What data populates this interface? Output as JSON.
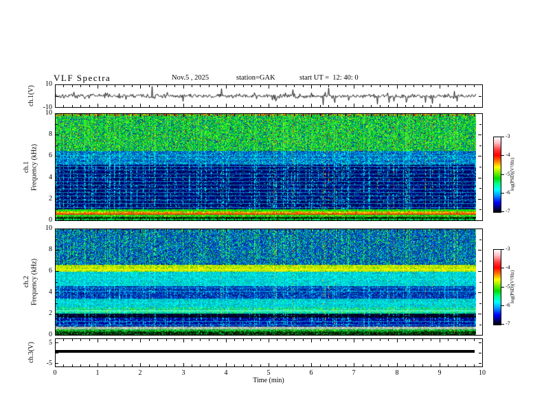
{
  "header": {
    "title": "VLF Spectra",
    "date": "Nov.5 , 2025",
    "station": "station=GAK",
    "start_ut": "start UT =  12: 40: 0"
  },
  "axes": {
    "x": {
      "label": "Time  (min)",
      "tick_labels": [
        "0",
        "1",
        "2",
        "3",
        "4",
        "5",
        "6",
        "7",
        "8",
        "9",
        "10"
      ],
      "range": [
        0,
        10
      ],
      "minor_divisions": 5
    },
    "ch1_wave": {
      "ylabel": "ch.1(V)",
      "tick_labels": [
        "10",
        "-10"
      ],
      "range": [
        -10,
        10
      ]
    },
    "spec": {
      "tick_labels": [
        "0",
        "2",
        "4",
        "6",
        "8",
        "10"
      ],
      "range": [
        0,
        10
      ],
      "minor_step_khz": 1
    },
    "ch3": {
      "ylabel": "ch.3(V)",
      "tick_labels": [
        "5",
        "-5"
      ],
      "range": [
        -7,
        7
      ]
    }
  },
  "ylabels": {
    "spec1_ch": "ch.1",
    "spec2_ch": "ch.2",
    "freq": "Frequency  (kHz)"
  },
  "colorbar": {
    "label": "log(PSD)(V²/Hz)",
    "tick_labels": [
      "-3",
      "-4",
      "-5",
      "-6",
      "-7"
    ],
    "gradient": [
      "#ffffff 0%",
      "#ffb8c0 8%",
      "#ff3838 17%",
      "#ff0000 24%",
      "#ff8800 33%",
      "#ffff00 40%",
      "#88ee00 47%",
      "#00dd00 55%",
      "#00ff88 62%",
      "#00ffff 70%",
      "#0099ff 78%",
      "#0000ff 87%",
      "#000077 94%",
      "#000000 100%"
    ]
  },
  "chart_data": {
    "type": "heatmap",
    "title": "VLF Spectra",
    "subtitle": "Nov.5 , 2025  station=GAK  start UT = 12:40:0",
    "xlabel": "Time (min)",
    "x_range": [
      0,
      10
    ],
    "x_ticks": [
      0,
      1,
      2,
      3,
      4,
      5,
      6,
      7,
      8,
      9,
      10
    ],
    "data_end_min": 9.84,
    "streaks": {
      "density": 0.22,
      "hot_fraction": 0.12,
      "comment": "vertical sferic streaks shared by all panels"
    },
    "colorbar": {
      "label": "log(PSD)(V²/Hz)",
      "ticks": [
        -3,
        -4,
        -5,
        -6,
        -7
      ],
      "z_range": [
        -7,
        -3
      ]
    },
    "panels": [
      {
        "id": "ch1_waveform",
        "type": "line",
        "ylabel": "ch.1(V)",
        "y_range": [
          -10,
          10
        ],
        "y_ticks": [
          10,
          -10
        ],
        "description": "continuous broadband noise about 0 V (~±1.5 V) with impulsive spikes reaching ±9 V",
        "noise_amp_v": 1.1,
        "spike_amp_v": [
          3,
          8
        ]
      },
      {
        "id": "ch1_spectrogram",
        "type": "heatmap",
        "ylabel": "ch.1 Frequency (kHz)",
        "y_range": [
          0,
          10
        ],
        "y_ticks": [
          0,
          2,
          4,
          6,
          8,
          10
        ],
        "z_label": "log(PSD)(V²/Hz)",
        "z_range": [
          -7,
          -3
        ],
        "bands": [
          {
            "f0": 9.8,
            "f1": 10.0,
            "sp": 0.45,
            "streak": "#55ff33",
            "palette": [
              [
                "#00dd22",
                3
              ],
              [
                "#ff3300",
                2
              ],
              [
                "#ff8800",
                1
              ],
              [
                "#ffee00",
                1
              ],
              [
                "#003399",
                1
              ]
            ]
          },
          {
            "f0": 6.5,
            "f1": 9.8,
            "sp": 0.55,
            "streak": "#55ff33",
            "palette": [
              [
                "#00dd22",
                5
              ],
              [
                "#33ee33",
                3
              ],
              [
                "#00aa44",
                2
              ],
              [
                "#0066cc",
                2
              ],
              [
                "#003399",
                1.5
              ],
              [
                "#88ff00",
                1
              ],
              [
                "#ffee00",
                0.5
              ],
              [
                "#cc2200",
                0.3
              ]
            ]
          },
          {
            "f0": 5.2,
            "f1": 6.5,
            "sp": 0.5,
            "streak": "#00ffee",
            "palette": [
              [
                "#0044cc",
                4
              ],
              [
                "#0077dd",
                2
              ],
              [
                "#00ccff",
                2
              ],
              [
                "#003399",
                3
              ],
              [
                "#00ffee",
                1
              ],
              [
                "#00dd55",
                1
              ]
            ]
          },
          {
            "f0": 1.0,
            "f1": 5.2,
            "sp": 0.55,
            "streak": "#00ffff",
            "palette": [
              [
                "#000066",
                5
              ],
              [
                "#000033",
                4
              ],
              [
                "#0000aa",
                3
              ],
              [
                "#001a8c",
                2
              ],
              [
                "#003fd0",
                1
              ],
              [
                "#00ccff",
                0.6
              ]
            ]
          },
          {
            "f0": 0.85,
            "f1": 1.0,
            "sp": 0.3,
            "streak": "#aaff00",
            "palette": [
              [
                "#00ee00",
                6
              ],
              [
                "#66ff00",
                2
              ],
              [
                "#00bb33",
                2
              ]
            ]
          },
          {
            "f0": 0.55,
            "f1": 0.85,
            "sp": 0.3,
            "streak": "#ff4400",
            "palette": [
              [
                "#ffee00",
                3
              ],
              [
                "#ff8800",
                3
              ],
              [
                "#ff3300",
                2
              ],
              [
                "#aaee00",
                2
              ],
              [
                "#00dd33",
                1
              ]
            ]
          },
          {
            "f0": 0.3,
            "f1": 0.55,
            "sp": 0.3,
            "streak": "#aaff00",
            "palette": [
              [
                "#00dd22",
                5
              ],
              [
                "#66ee00",
                2
              ],
              [
                "#00aa44",
                2
              ],
              [
                "#ffee00",
                0.7
              ]
            ]
          },
          {
            "f0": 0.15,
            "f1": 0.3,
            "sp": 0.2,
            "streak": "#00cc66",
            "palette": [
              [
                "#003300",
                3
              ],
              [
                "#000022",
                3
              ],
              [
                "#00aa22",
                2
              ],
              [
                "#004400",
                2
              ]
            ]
          },
          {
            "f0": 0.0,
            "f1": 0.15,
            "sp": 0.2,
            "streak": "#00ffff",
            "palette": [
              [
                "#00cc44",
                3
              ],
              [
                "#00ffff",
                1
              ],
              [
                "#002200",
                2
              ],
              [
                "#008833",
                2
              ]
            ]
          }
        ],
        "hlines": [
          {
            "f": 1.25,
            "color": "#00ffff",
            "a": 0.5,
            "w": 1
          },
          {
            "f": 1.6,
            "color": "#00ffff",
            "a": 0.5,
            "w": 1
          },
          {
            "f": 1.95,
            "color": "#00ffff",
            "a": 0.55,
            "w": 1
          },
          {
            "f": 2.3,
            "color": "#00ffff",
            "a": 0.5,
            "w": 1
          },
          {
            "f": 2.65,
            "color": "#00ffff",
            "a": 0.5,
            "w": 1
          },
          {
            "f": 3.0,
            "color": "#00ffff",
            "a": 0.55,
            "w": 1
          },
          {
            "f": 3.35,
            "color": "#00ffff",
            "a": 0.45,
            "w": 1
          },
          {
            "f": 3.7,
            "color": "#00ffff",
            "a": 0.5,
            "w": 1
          },
          {
            "f": 4.05,
            "color": "#00ffff",
            "a": 0.5,
            "w": 1
          },
          {
            "f": 4.4,
            "color": "#00ffff",
            "a": 0.45,
            "w": 1
          },
          {
            "f": 4.75,
            "color": "#00ffff",
            "a": 0.5,
            "w": 1
          },
          {
            "f": 5.1,
            "color": "#00ffff",
            "a": 0.55,
            "w": 1
          },
          {
            "f": 5.45,
            "color": "#00ffff",
            "a": 0.4,
            "w": 1
          },
          {
            "f": 5.8,
            "color": "#00ffff",
            "a": 0.4,
            "w": 1
          },
          {
            "f": 6.15,
            "color": "#00ffff",
            "a": 0.35,
            "w": 1
          },
          {
            "f": 0.62,
            "color": "#ff2200",
            "a": 0.8,
            "w": 2
          },
          {
            "f": 0.15,
            "color": "#00ff44",
            "a": 0.7,
            "w": 1
          }
        ]
      },
      {
        "id": "ch2_spectrogram",
        "type": "heatmap",
        "ylabel": "ch.2 Frequency (kHz)",
        "y_range": [
          0,
          10
        ],
        "y_ticks": [
          0,
          2,
          4,
          6,
          8,
          10
        ],
        "z_label": "log(PSD)(V²/Hz)",
        "z_range": [
          -7,
          -3
        ],
        "bands": [
          {
            "f0": 6.6,
            "f1": 10.0,
            "sp": 0.5,
            "streak": "#33ff66",
            "palette": [
              [
                "#0044cc",
                4
              ],
              [
                "#003399",
                3
              ],
              [
                "#0077dd",
                2
              ],
              [
                "#00ccff",
                1.5
              ],
              [
                "#00dd55",
                1.5
              ],
              [
                "#33ee33",
                1
              ],
              [
                "#001166",
                1
              ]
            ]
          },
          {
            "f0": 6.0,
            "f1": 6.6,
            "sp": 0.35,
            "streak": "#ffff00",
            "palette": [
              [
                "#ccee00",
                4
              ],
              [
                "#ffee00",
                3
              ],
              [
                "#88dd00",
                3
              ],
              [
                "#00cc22",
                1
              ]
            ]
          },
          {
            "f0": 4.6,
            "f1": 6.0,
            "sp": 0.45,
            "streak": "#00ffff",
            "palette": [
              [
                "#00dddd",
                4
              ],
              [
                "#00ffff",
                2
              ],
              [
                "#00aacc",
                2
              ],
              [
                "#0088cc",
                1
              ],
              [
                "#00dd66",
                1
              ]
            ]
          },
          {
            "f0": 3.4,
            "f1": 4.6,
            "sp": 0.5,
            "streak": "#00ffff",
            "palette": [
              [
                "#0033bb",
                4
              ],
              [
                "#0055dd",
                2
              ],
              [
                "#001a8c",
                2
              ],
              [
                "#00ccff",
                1
              ],
              [
                "#000044",
                1
              ]
            ]
          },
          {
            "f0": 2.6,
            "f1": 3.4,
            "sp": 0.4,
            "streak": "#00ffff",
            "palette": [
              [
                "#00cccc",
                4
              ],
              [
                "#00ffff",
                2
              ],
              [
                "#0099cc",
                2
              ],
              [
                "#00dd66",
                0.8
              ]
            ]
          },
          {
            "f0": 2.0,
            "f1": 2.6,
            "sp": 0.35,
            "streak": "#66ffcc",
            "palette": [
              [
                "#00dd88",
                3
              ],
              [
                "#00eecc",
                3
              ],
              [
                "#66ee00",
                1.5
              ],
              [
                "#00aacc",
                2
              ]
            ]
          },
          {
            "f0": 1.6,
            "f1": 2.0,
            "sp": 0.3,
            "streak": "#00ffff",
            "palette": [
              [
                "#000022",
                5
              ],
              [
                "#000f66",
                3
              ],
              [
                "#002200",
                1
              ]
            ]
          },
          {
            "f0": 0.75,
            "f1": 1.6,
            "sp": 0.5,
            "streak": "#00ffff",
            "palette": [
              [
                "#0000aa",
                4
              ],
              [
                "#000066",
                3
              ],
              [
                "#0033cc",
                2
              ],
              [
                "#00ccff",
                0.8
              ]
            ]
          },
          {
            "f0": 0.55,
            "f1": 0.75,
            "sp": 0.2,
            "streak": "#ddffdd",
            "palette": [
              [
                "#aaccaa",
                3
              ],
              [
                "#cccccc",
                2
              ],
              [
                "#88bb88",
                2
              ],
              [
                "#66aa66",
                1
              ]
            ]
          },
          {
            "f0": 0.3,
            "f1": 0.55,
            "sp": 0.25,
            "streak": "#66ff00",
            "palette": [
              [
                "#00cc44",
                4
              ],
              [
                "#44dd00",
                2
              ],
              [
                "#007733",
                2
              ],
              [
                "#003300",
                1
              ]
            ]
          },
          {
            "f0": 0.0,
            "f1": 0.3,
            "sp": 0.2,
            "streak": "#00cc44",
            "palette": [
              [
                "#001100",
                4
              ],
              [
                "#004400",
                2
              ],
              [
                "#00aa33",
                2
              ],
              [
                "#330000",
                1
              ]
            ]
          }
        ],
        "hlines": [
          {
            "f": 0.95,
            "color": "#00ffff",
            "a": 0.5,
            "w": 1
          },
          {
            "f": 1.3,
            "color": "#00ffff",
            "a": 0.5,
            "w": 1
          },
          {
            "f": 1.8,
            "color": "#000000",
            "a": 0.5,
            "w": 2
          },
          {
            "f": 2.35,
            "color": "#66ffcc",
            "a": 0.7,
            "w": 2
          },
          {
            "f": 3.05,
            "color": "#00ffff",
            "a": 0.45,
            "w": 1
          },
          {
            "f": 3.45,
            "color": "#00ffff",
            "a": 0.45,
            "w": 1
          },
          {
            "f": 4.15,
            "color": "#00ffff",
            "a": 0.5,
            "w": 1
          },
          {
            "f": 4.5,
            "color": "#00ffff",
            "a": 0.45,
            "w": 1
          },
          {
            "f": 5.3,
            "color": "#00ffff",
            "a": 0.4,
            "w": 1
          },
          {
            "f": 5.7,
            "color": "#00ffff",
            "a": 0.4,
            "w": 1
          },
          {
            "f": 6.25,
            "color": "#ffff00",
            "a": 0.6,
            "w": 2
          }
        ]
      },
      {
        "id": "ch3_waveform",
        "type": "line",
        "ylabel": "ch.3(V)",
        "y_range": [
          -7,
          7
        ],
        "y_ticks": [
          5,
          -5
        ],
        "description": "flat constant 0 V line (thick) from 0 to ~9.7 min",
        "value_v": 0,
        "line_end_min": 9.7
      }
    ]
  }
}
